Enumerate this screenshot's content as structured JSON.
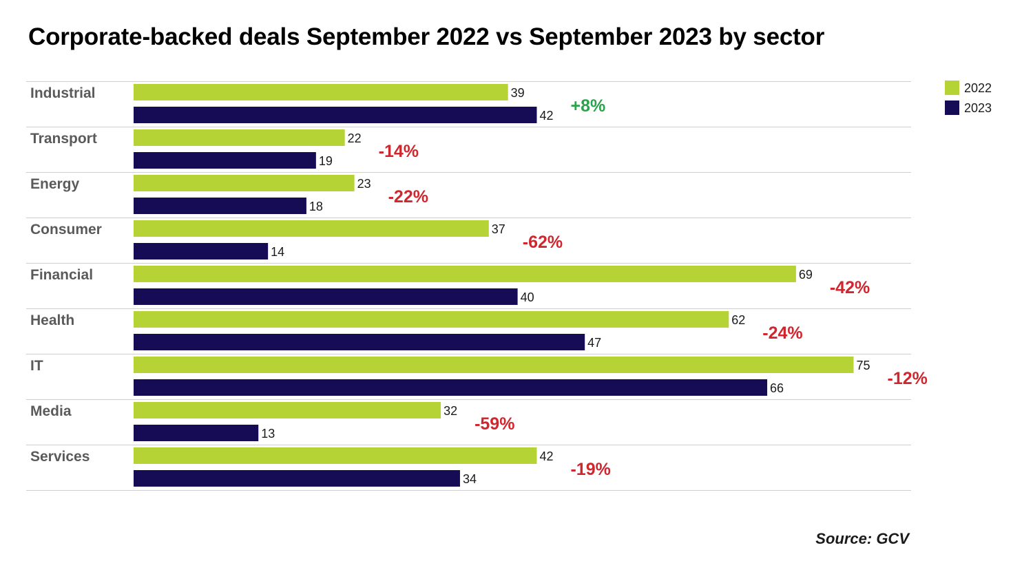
{
  "title": "Corporate-backed deals September 2022 vs September 2023 by sector",
  "source": "Source: GCV",
  "colors": {
    "series_2022": "#b5d334",
    "series_2023": "#160c55",
    "increase": "#2aa34a",
    "decrease": "#d0262e",
    "category_text": "#5a5a5a",
    "gridline": "#cfcfcf"
  },
  "chart_data": {
    "type": "bar",
    "orientation": "horizontal",
    "title": "Corporate-backed deals September 2022 vs September 2023 by sector",
    "categories": [
      "Industrial",
      "Transport",
      "Energy",
      "Consumer",
      "Financial",
      "Health",
      "IT",
      "Media",
      "Services"
    ],
    "series": [
      {
        "name": "2022",
        "values": [
          39,
          22,
          23,
          37,
          69,
          62,
          75,
          32,
          42
        ]
      },
      {
        "name": "2023",
        "values": [
          42,
          19,
          18,
          14,
          40,
          47,
          66,
          13,
          34
        ]
      }
    ],
    "change_labels": [
      "+8%",
      "-14%",
      "-22%",
      "-62%",
      "-42%",
      "-24%",
      "-12%",
      "-59%",
      "-19%"
    ],
    "xlim": [
      0,
      80
    ],
    "legend_position": "top-right",
    "grid": false,
    "data_labels": true
  }
}
